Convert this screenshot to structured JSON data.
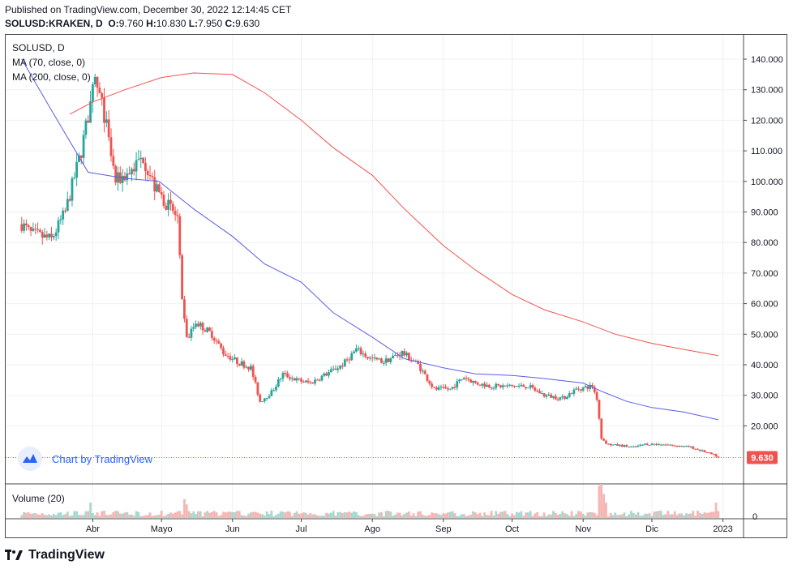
{
  "header": {
    "published": "Published on TradingView.com, December 30, 2022 12:14:45 CET",
    "symbol": "SOLUSD:KRAKEN, D",
    "ohlc_o_label": "O:",
    "ohlc_o": "9.760",
    "ohlc_h_label": "H:",
    "ohlc_h": "10.830",
    "ohlc_l_label": "L:",
    "ohlc_l": "7.950",
    "ohlc_c_label": "C:",
    "ohlc_c": "9.630"
  },
  "legend": {
    "symbol": "SOLUSD, D",
    "ma70": "MA (70, close, 0)",
    "ma200": "MA (200, close, 0)"
  },
  "watermark": "Chart by TradingView",
  "volume_label": "Volume (20)",
  "volume_axis_label": "0",
  "last_price_label": "9.630",
  "footer": {
    "brand": "TradingView",
    "logo_icon": "tradingview-logo-icon"
  },
  "colors": {
    "up": "#26a69a",
    "down": "#ef5350",
    "ma70": "#5b5bea",
    "ma200": "#f2524e",
    "watermark": "#2962ff"
  },
  "chart_data": {
    "type": "candlestick",
    "symbol": "SOLUSD:KRAKEN",
    "interval": "D",
    "price_axis": {
      "ticks": [
        140,
        130,
        120,
        110,
        100,
        90,
        80,
        70,
        60,
        50,
        40,
        30,
        20
      ],
      "tick_labels": [
        "140.000",
        "130.000",
        "120.000",
        "110.000",
        "100.000",
        "90.000",
        "80.000",
        "70.000",
        "60.000",
        "50.000",
        "40.000",
        "30.000",
        "20.000"
      ]
    },
    "time_axis": {
      "labels": [
        "Abr",
        "Mayo",
        "Jun",
        "Jul",
        "Ago",
        "Sep",
        "Oct",
        "Nov",
        "Dic",
        "2023"
      ],
      "dates": [
        "2022-04-01",
        "2022-05-01",
        "2022-06-01",
        "2022-07-01",
        "2022-08-01",
        "2022-09-01",
        "2022-10-01",
        "2022-11-01",
        "2022-12-01",
        "2023-01-01"
      ]
    },
    "grid": true,
    "price_anchors": [
      [
        "2022-03-01",
        86
      ],
      [
        "2022-03-05",
        83
      ],
      [
        "2022-03-14",
        81
      ],
      [
        "2022-03-20",
        90
      ],
      [
        "2022-03-27",
        110
      ],
      [
        "2022-04-02",
        133
      ],
      [
        "2022-04-06",
        122
      ],
      [
        "2022-04-11",
        100
      ],
      [
        "2022-04-17",
        103
      ],
      [
        "2022-04-23",
        108
      ],
      [
        "2022-04-28",
        98
      ],
      [
        "2022-05-03",
        93
      ],
      [
        "2022-05-08",
        88
      ],
      [
        "2022-05-10",
        60
      ],
      [
        "2022-05-12",
        48
      ],
      [
        "2022-05-16",
        54
      ],
      [
        "2022-05-23",
        50
      ],
      [
        "2022-05-28",
        44
      ],
      [
        "2022-06-03",
        41
      ],
      [
        "2022-06-09",
        39
      ],
      [
        "2022-06-13",
        28
      ],
      [
        "2022-06-18",
        31
      ],
      [
        "2022-06-23",
        37
      ],
      [
        "2022-06-29",
        35
      ],
      [
        "2022-07-05",
        34
      ],
      [
        "2022-07-12",
        37
      ],
      [
        "2022-07-19",
        40
      ],
      [
        "2022-07-25",
        45
      ],
      [
        "2022-07-31",
        42
      ],
      [
        "2022-08-06",
        41
      ],
      [
        "2022-08-14",
        44
      ],
      [
        "2022-08-21",
        40
      ],
      [
        "2022-08-28",
        32
      ],
      [
        "2022-09-04",
        32
      ],
      [
        "2022-09-10",
        36
      ],
      [
        "2022-09-15",
        34
      ],
      [
        "2022-09-22",
        33
      ],
      [
        "2022-09-30",
        33
      ],
      [
        "2022-10-08",
        33
      ],
      [
        "2022-10-15",
        30
      ],
      [
        "2022-10-23",
        29
      ],
      [
        "2022-10-29",
        32
      ],
      [
        "2022-11-05",
        33
      ],
      [
        "2022-11-07",
        29
      ],
      [
        "2022-11-09",
        16
      ],
      [
        "2022-11-11",
        14
      ],
      [
        "2022-11-18",
        13.5
      ],
      [
        "2022-11-23",
        13
      ],
      [
        "2022-11-28",
        14
      ],
      [
        "2022-12-05",
        14
      ],
      [
        "2022-12-12",
        13.5
      ],
      [
        "2022-12-18",
        13
      ],
      [
        "2022-12-24",
        11.5
      ],
      [
        "2022-12-28",
        10.5
      ],
      [
        "2022-12-30",
        9.63
      ]
    ],
    "ma70_series": {
      "name": "MA (70, close, 0)",
      "points": [
        [
          "2022-03-01",
          140
        ],
        [
          "2022-03-15",
          122
        ],
        [
          "2022-03-30",
          103
        ],
        [
          "2022-04-15",
          101
        ],
        [
          "2022-04-30",
          100
        ],
        [
          "2022-05-15",
          91
        ],
        [
          "2022-06-01",
          82
        ],
        [
          "2022-06-15",
          73
        ],
        [
          "2022-07-01",
          67
        ],
        [
          "2022-07-15",
          57
        ],
        [
          "2022-08-01",
          49
        ],
        [
          "2022-08-15",
          42
        ],
        [
          "2022-09-01",
          39
        ],
        [
          "2022-09-15",
          37
        ],
        [
          "2022-10-01",
          36.5
        ],
        [
          "2022-10-15",
          35.5
        ],
        [
          "2022-11-01",
          34
        ],
        [
          "2022-11-10",
          31
        ],
        [
          "2022-11-20",
          28
        ],
        [
          "2022-12-01",
          26
        ],
        [
          "2022-12-15",
          24.5
        ],
        [
          "2022-12-30",
          22
        ]
      ]
    },
    "ma200_series": {
      "name": "MA (200, close, 0)",
      "points": [
        [
          "2022-03-22",
          122
        ],
        [
          "2022-04-01",
          126
        ],
        [
          "2022-04-15",
          130
        ],
        [
          "2022-05-01",
          134
        ],
        [
          "2022-05-15",
          135.5
        ],
        [
          "2022-06-01",
          135
        ],
        [
          "2022-06-15",
          129
        ],
        [
          "2022-07-01",
          120
        ],
        [
          "2022-07-15",
          111
        ],
        [
          "2022-08-01",
          102
        ],
        [
          "2022-08-15",
          91
        ],
        [
          "2022-09-01",
          79
        ],
        [
          "2022-09-15",
          71
        ],
        [
          "2022-10-01",
          63
        ],
        [
          "2022-10-15",
          58
        ],
        [
          "2022-11-01",
          54
        ],
        [
          "2022-11-15",
          50
        ],
        [
          "2022-12-01",
          47
        ],
        [
          "2022-12-15",
          45
        ],
        [
          "2022-12-30",
          43
        ]
      ]
    },
    "volume_spikes": [
      [
        "2022-03-31",
        0.45
      ],
      [
        "2022-05-11",
        0.55
      ],
      [
        "2022-05-12",
        0.4
      ],
      [
        "2022-11-08",
        0.95
      ],
      [
        "2022-11-09",
        1.0
      ],
      [
        "2022-11-10",
        0.7
      ],
      [
        "2022-11-11",
        0.45
      ],
      [
        "2022-12-29",
        0.45
      ],
      [
        "2022-12-30",
        0.2
      ]
    ]
  }
}
